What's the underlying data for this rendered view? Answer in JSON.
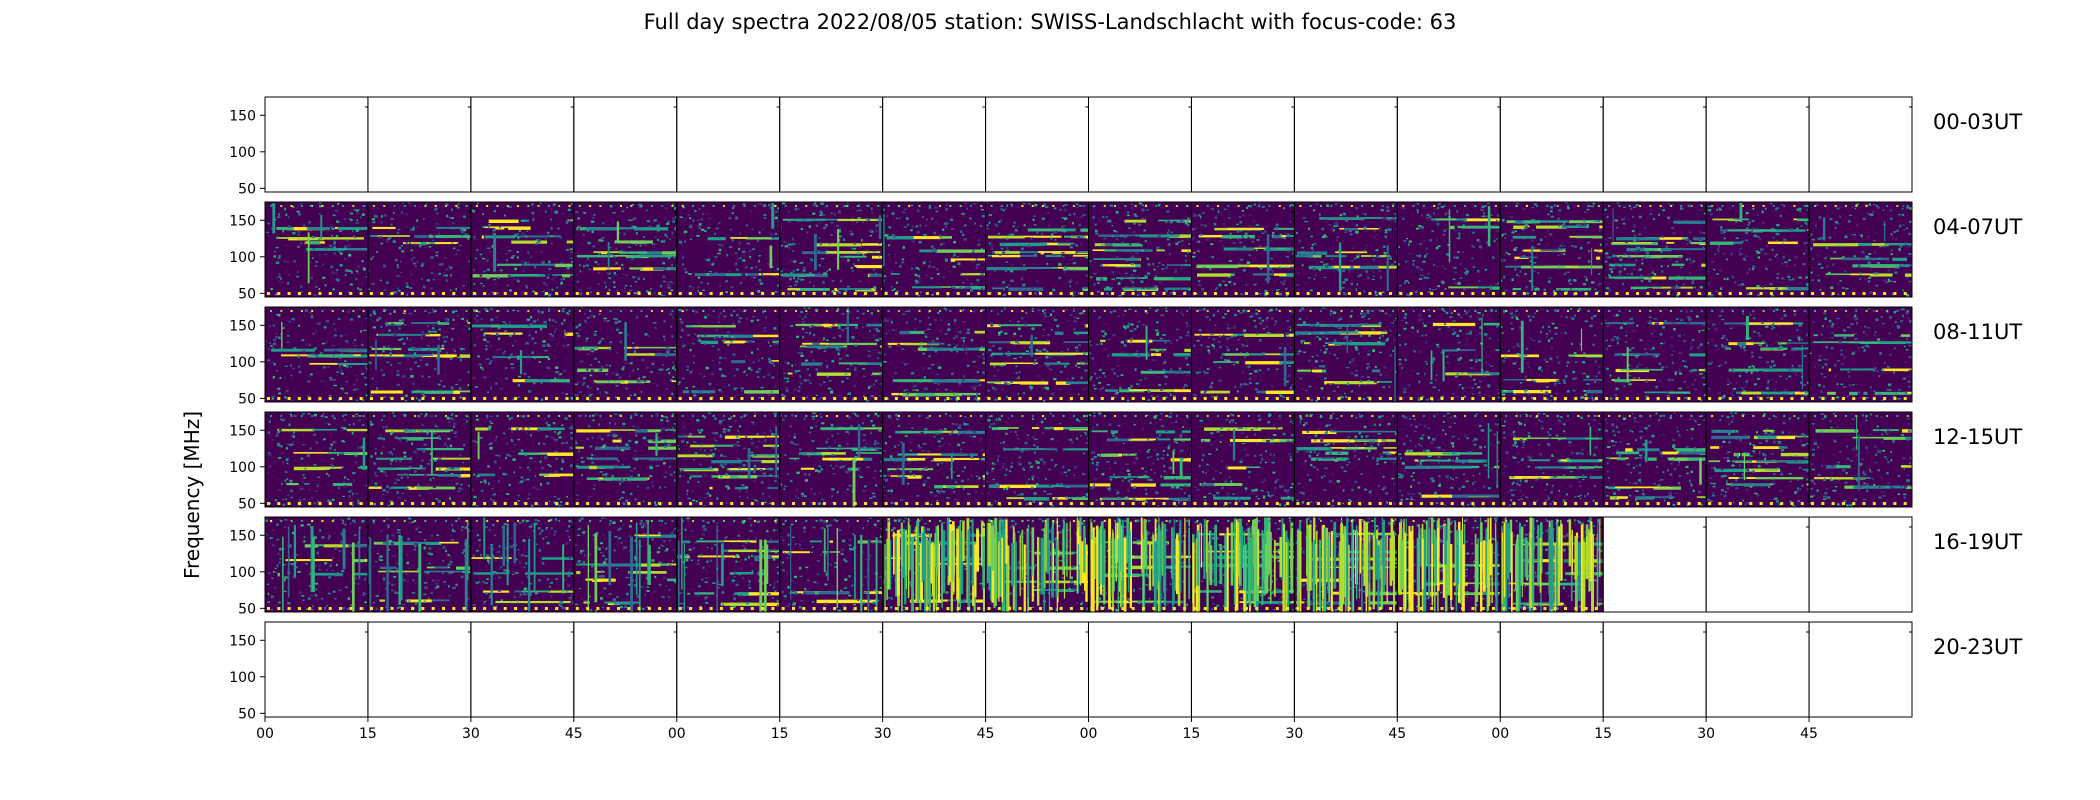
{
  "title": "Full day spectra 2022/08/05 station: SWISS-Landschlacht with focus-code: 63",
  "ylabel": "Frequency [MHz]",
  "colors": {
    "background": "#440154",
    "palette": [
      "#440154",
      "#482878",
      "#3e4989",
      "#31688e",
      "#26828e",
      "#1f9e89",
      "#35b779",
      "#6ece58",
      "#b5de2b",
      "#fde725"
    ],
    "frame": "#000000"
  },
  "chart_data": {
    "type": "heatmap",
    "colormap": "viridis",
    "ylabel": "Frequency [MHz]",
    "ylim": [
      45,
      175
    ],
    "yticks": [
      50,
      100,
      150
    ],
    "xticks": [
      "00",
      "15",
      "30",
      "45",
      "00",
      "15",
      "30",
      "45",
      "00",
      "15",
      "30",
      "45",
      "00",
      "15",
      "30",
      "45"
    ],
    "rows": [
      {
        "label": "00-03UT",
        "filled_panels": 0
      },
      {
        "label": "04-07UT",
        "filled_panels": 16
      },
      {
        "label": "08-11UT",
        "filled_panels": 16
      },
      {
        "label": "12-15UT",
        "filled_panels": 16
      },
      {
        "label": "16-19UT",
        "filled_panels": 13
      },
      {
        "label": "20-23UT",
        "filled_panels": 0
      }
    ],
    "panels_per_row": 16,
    "minutes_per_panel": 15
  }
}
